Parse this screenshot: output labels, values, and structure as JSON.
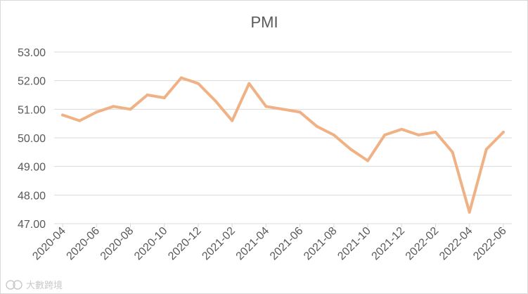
{
  "chart_data": {
    "type": "line",
    "title": "PMI",
    "xlabel": "",
    "ylabel": "",
    "ylim": [
      47,
      53
    ],
    "y_ticks": [
      "47.00",
      "48.00",
      "49.00",
      "50.00",
      "51.00",
      "52.00",
      "53.00"
    ],
    "x": [
      "2020-04",
      "2020-05",
      "2020-06",
      "2020-07",
      "2020-08",
      "2020-09",
      "2020-10",
      "2020-11",
      "2020-12",
      "2021-01",
      "2021-02",
      "2021-03",
      "2021-04",
      "2021-05",
      "2021-06",
      "2021-07",
      "2021-08",
      "2021-09",
      "2021-10",
      "2021-11",
      "2021-12",
      "2022-01",
      "2022-02",
      "2022-03",
      "2022-04",
      "2022-05",
      "2022-06"
    ],
    "x_tick_labels": [
      "2020-04",
      "2020-06",
      "2020-08",
      "2020-10",
      "2020-12",
      "2021-02",
      "2021-04",
      "2021-06",
      "2021-08",
      "2021-10",
      "2021-12",
      "2022-02",
      "2022-04",
      "2022-06"
    ],
    "values": [
      50.8,
      50.6,
      50.9,
      51.1,
      51.0,
      51.5,
      51.4,
      52.1,
      51.9,
      51.3,
      50.6,
      51.9,
      51.1,
      51.0,
      50.9,
      50.4,
      50.1,
      49.6,
      49.2,
      50.1,
      50.3,
      50.1,
      50.2,
      49.5,
      47.4,
      49.6,
      50.2
    ],
    "grid": true,
    "legend": "none",
    "line_color": "#f0b285",
    "gridline_color": "#d9d9d9"
  },
  "watermark": {
    "text": "大數跨境",
    "logo_icon": "ks-logo-icon"
  }
}
